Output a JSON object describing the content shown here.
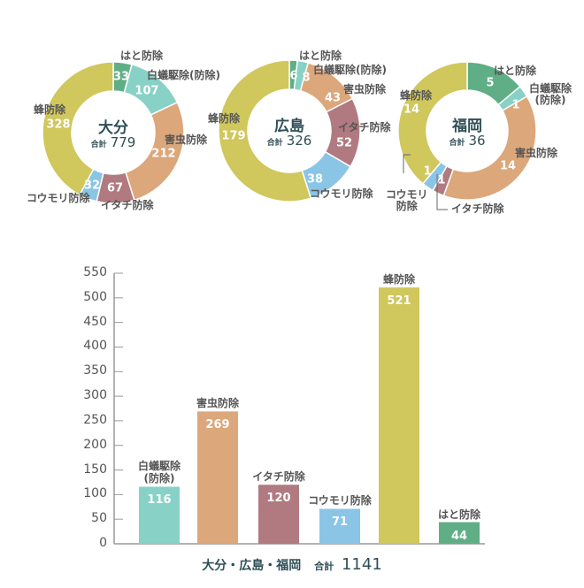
{
  "colors": {
    "hato": "#5fae85",
    "shiroari": "#88d1c6",
    "gaichu": "#dba77b",
    "itachi": "#b07a80",
    "koumori": "#8ac5e6",
    "hachi": "#d0c75d",
    "text": "#2f4f57"
  },
  "total_label": "合計",
  "chart_data": [
    {
      "type": "pie",
      "title": "大分",
      "total": "779",
      "slices": [
        {
          "label": "はと防除",
          "value": 33,
          "color": "#5fae85"
        },
        {
          "label": "白蟻駆除(防除)",
          "value": 107,
          "color": "#88d1c6"
        },
        {
          "label": "害虫防除",
          "value": 212,
          "color": "#dba77b"
        },
        {
          "label": "イタチ防除",
          "value": 67,
          "color": "#b07a80"
        },
        {
          "label": "コウモリ防除",
          "value": 32,
          "color": "#8ac5e6"
        },
        {
          "label": "蜂防除",
          "value": 328,
          "color": "#d0c75d"
        }
      ]
    },
    {
      "type": "pie",
      "title": "広島",
      "total": "326",
      "slices": [
        {
          "label": "はと防除",
          "value": 6,
          "color": "#5fae85"
        },
        {
          "label": "白蟻駆除(防除)",
          "value": 8,
          "color": "#88d1c6"
        },
        {
          "label": "害虫防除",
          "value": 43,
          "color": "#dba77b"
        },
        {
          "label": "イタチ防除",
          "value": 52,
          "color": "#b07a80"
        },
        {
          "label": "コウモリ防除",
          "value": 38,
          "color": "#8ac5e6"
        },
        {
          "label": "蜂防除",
          "value": 179,
          "color": "#d0c75d"
        }
      ]
    },
    {
      "type": "pie",
      "title": "福岡",
      "total": "36",
      "slices": [
        {
          "label": "はと防除",
          "value": 5,
          "color": "#5fae85"
        },
        {
          "label": "白蟻駆除\n(防除)",
          "value": 1,
          "color": "#88d1c6"
        },
        {
          "label": "害虫防除",
          "value": 14,
          "color": "#dba77b"
        },
        {
          "label": "イタチ防除",
          "value": 1,
          "color": "#b07a80"
        },
        {
          "label": "コウモリ\n防除",
          "value": 1,
          "color": "#8ac5e6"
        },
        {
          "label": "蜂防除",
          "value": 14,
          "color": "#d0c75d"
        }
      ]
    },
    {
      "type": "bar",
      "title": "大分・広島・福岡",
      "total": "1141",
      "categories": [
        "白蟻駆除\n(防除)",
        "害虫防除",
        "イタチ防除",
        "コウモリ防除",
        "蜂防除",
        "はと防除"
      ],
      "values": [
        116,
        269,
        120,
        71,
        521,
        44
      ],
      "colors": [
        "#88d1c6",
        "#dba77b",
        "#b07a80",
        "#8ac5e6",
        "#d0c75d",
        "#5fae85"
      ],
      "ylim": [
        0,
        550
      ],
      "yticks": [
        0,
        50,
        100,
        150,
        200,
        250,
        300,
        350,
        400,
        450,
        500,
        550
      ],
      "grid": false
    }
  ]
}
